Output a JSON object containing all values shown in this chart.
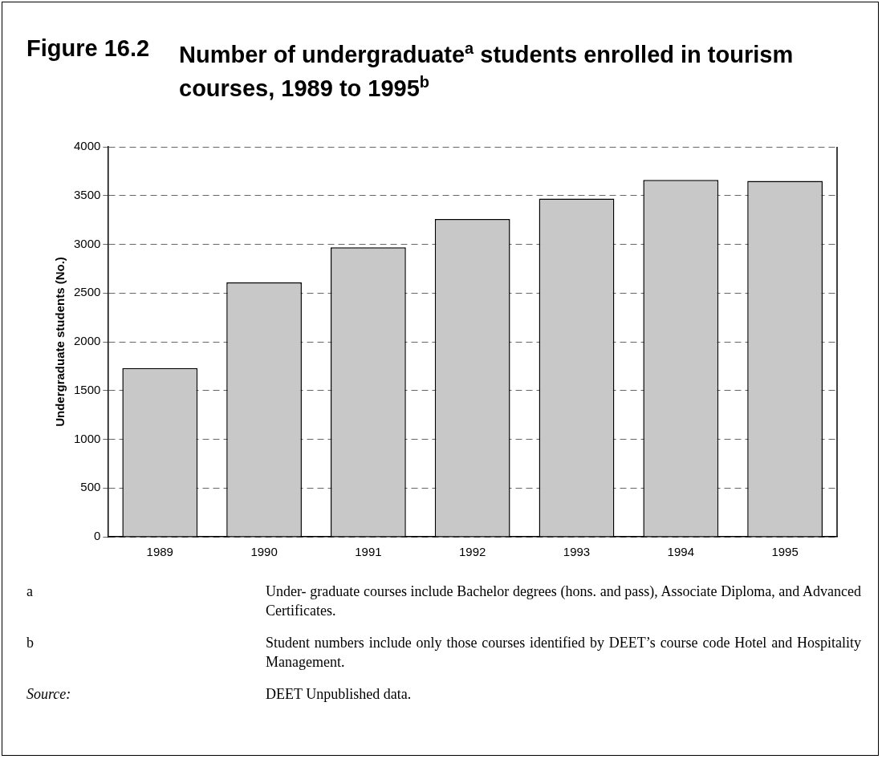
{
  "chart_data": {
    "type": "bar",
    "title": "Figure 16.2\tNumber of undergraduate$^{a}$ students enrolled in tourism courses, 1989 to 1995$^{b}$",
    "ylabel": "Undergraduate students (No.)",
    "categories": [
      "1989",
      "1990",
      "1991",
      "1992",
      "1993",
      "1994",
      "1995"
    ],
    "values": [
      1730,
      2610,
      2970,
      3260,
      3470,
      3660,
      3650
    ],
    "color": "#c8c8c8",
    "ylim": [
      0,
      4000
    ],
    "yticks": [
      0,
      500,
      1000,
      1500,
      2000,
      2500,
      3000,
      3500,
      4000
    ],
    "grid": "y",
    "legend": false,
    "annotations": [
      "a",
      "Under- graduate courses include Bachelor degrees (hons. and pass), Associate Diploma, and Advanced Certificates.",
      "b",
      "Student numbers include only those courses identified by DEET’s course code Hotel and Hospitality Management.",
      "Source:",
      "DEET Unpublished data."
    ]
  }
}
